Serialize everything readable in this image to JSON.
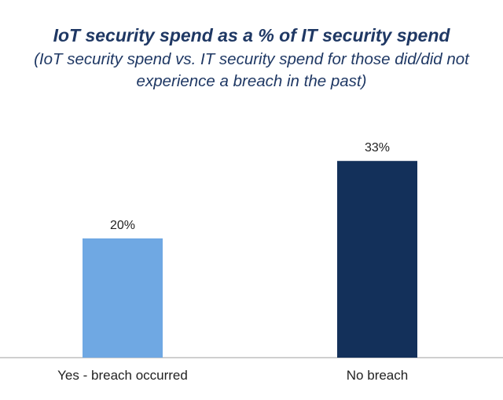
{
  "chart_data": {
    "type": "bar",
    "title": "IoT security spend as a % of IT security spend",
    "subtitle": "(IoT security spend vs. IT security spend for those did/did not experience a breach in the past)",
    "categories": [
      "Yes - breach occurred",
      "No breach"
    ],
    "values": [
      20,
      33
    ],
    "data_labels": [
      "20%",
      "33%"
    ],
    "colors": [
      "#6fa8e3",
      "#13305a"
    ],
    "xlabel": "",
    "ylabel": "",
    "ylim": [
      0,
      40
    ],
    "grid": false,
    "legend": "none"
  }
}
